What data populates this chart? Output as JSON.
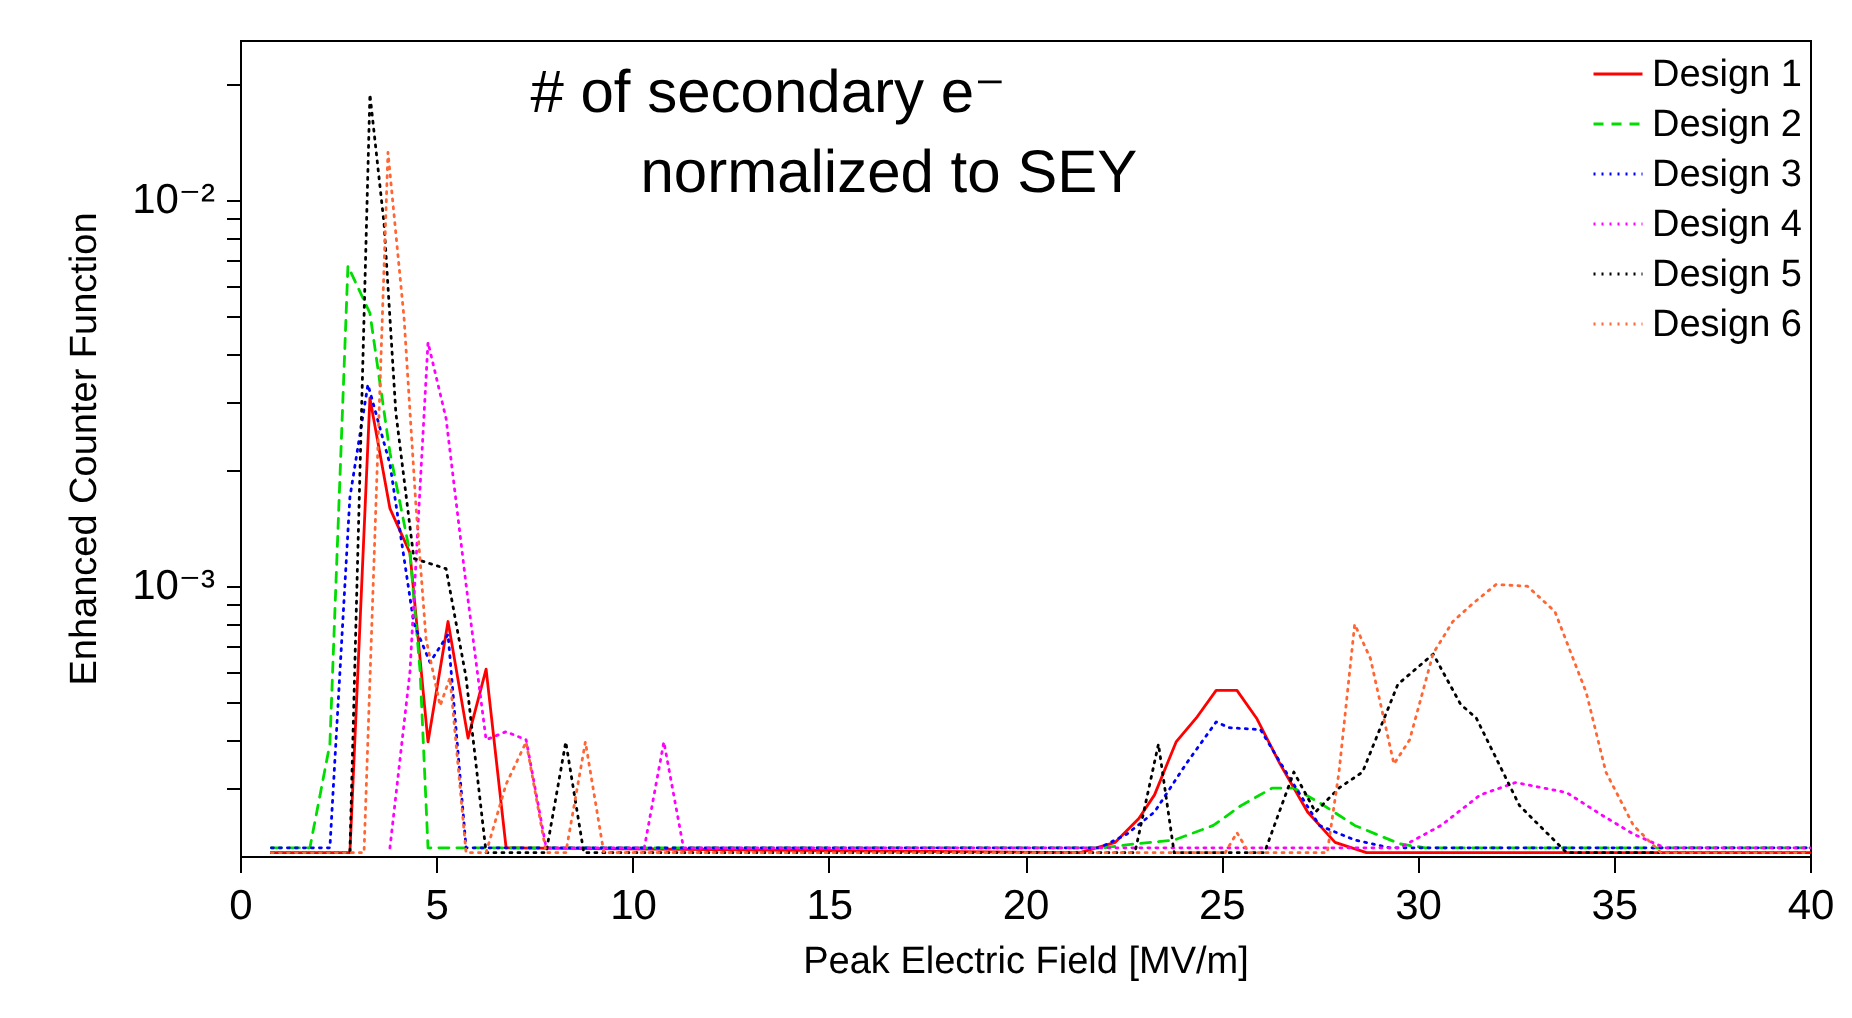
{
  "chart_data": {
    "type": "line",
    "xlabel": "Peak Electric Field [MV/m]",
    "ylabel": "Enhanced Counter Function",
    "log": "y",
    "xlim": [
      0,
      40
    ],
    "xticks": [
      0,
      5,
      10,
      15,
      20,
      25,
      30,
      35,
      40
    ],
    "ylim": [
      0.0002,
      0.026
    ],
    "yticks": [
      {
        "value": 0.0003,
        "label": null
      },
      {
        "value": 0.0004,
        "label": null
      },
      {
        "value": 0.0005,
        "label": null
      },
      {
        "value": 0.0006,
        "label": null
      },
      {
        "value": 0.0007,
        "label": null
      },
      {
        "value": 0.0008,
        "label": null
      },
      {
        "value": 0.0009,
        "label": null
      },
      {
        "value": 0.001,
        "label": "10⁻³"
      },
      {
        "value": 0.002,
        "label": null
      },
      {
        "value": 0.003,
        "label": null
      },
      {
        "value": 0.004,
        "label": null
      },
      {
        "value": 0.005,
        "label": null
      },
      {
        "value": 0.006,
        "label": null
      },
      {
        "value": 0.007,
        "label": null
      },
      {
        "value": 0.008,
        "label": null
      },
      {
        "value": 0.009,
        "label": null
      },
      {
        "value": 0.01,
        "label": "10⁻²"
      },
      {
        "value": 0.02,
        "label": null
      }
    ],
    "grid": false,
    "legend": "top right",
    "marker": "none",
    "annotations": [
      "# of secondary e⁻",
      "normalized to SEY"
    ],
    "series": [
      {
        "name": "Design 1",
        "color": "#ff0000",
        "line_style": "solid",
        "x": [
          0.8,
          2.8,
          3.31,
          3.82,
          4.33,
          4.79,
          5.3,
          5.81,
          6.27,
          6.78,
          21.4,
          22.3,
          22.9,
          23.3,
          23.85,
          24.36,
          24.87,
          25.4,
          25.9,
          26.5,
          27.2,
          27.9,
          28.7,
          40
        ],
        "values": [
          0.000204,
          0.000204,
          0.00307,
          0.00159,
          0.00122,
          0.000395,
          0.00081,
          0.000404,
          0.00061,
          0.00021,
          0.000204,
          0.000217,
          0.00025,
          0.000288,
          0.000395,
          0.000455,
          0.000537,
          0.000537,
          0.000455,
          0.000346,
          0.00026,
          0.000217,
          0.000204,
          0.000204
        ]
      },
      {
        "name": "Design 2",
        "color": "#00dd00",
        "line_style": "dashed",
        "x": [
          0.8,
          1.78,
          2.29,
          2.75,
          3.31,
          3.82,
          4.33,
          4.59,
          4.79,
          22.0,
          22.8,
          23.8,
          24.8,
          25.5,
          26.3,
          26.85,
          27.5,
          28.4,
          29.55,
          30.2,
          40
        ],
        "values": [
          0.00021,
          0.00021,
          0.00039,
          0.00675,
          0.0051,
          0.00222,
          0.00122,
          0.0006,
          0.00021,
          0.00021,
          0.000215,
          0.00022,
          0.00024,
          0.00027,
          0.0003,
          0.0003,
          0.000275,
          0.00024,
          0.000215,
          0.00021,
          0.00021
        ]
      },
      {
        "name": "Design 3",
        "color": "#0000ff",
        "line_style": "dotted",
        "x": [
          0.8,
          2.29,
          2.8,
          3.26,
          3.82,
          4.43,
          4.84,
          5.3,
          5.76,
          21.9,
          22.6,
          23.3,
          24.1,
          24.87,
          25.2,
          26.0,
          26.65,
          27.5,
          28.4,
          29.3,
          40
        ],
        "values": [
          0.00021,
          0.00021,
          0.0017,
          0.00333,
          0.00207,
          0.0008,
          0.000635,
          0.00075,
          0.00021,
          0.00021,
          0.000228,
          0.00026,
          0.000346,
          0.000445,
          0.00043,
          0.000425,
          0.00033,
          0.00024,
          0.00022,
          0.00021,
          0.00021
        ]
      },
      {
        "name": "Design 4",
        "color": "#ff00ff",
        "line_style": "dotted",
        "x": [
          3.82,
          4.33,
          4.79,
          5.25,
          5.76,
          6.27,
          6.78,
          7.29,
          7.8,
          10.3,
          10.8,
          11.3,
          29.55,
          30.6,
          31.6,
          32.5,
          33.8,
          34.65,
          35.5,
          36.3,
          40
        ],
        "values": [
          0.00021,
          0.0006,
          0.00428,
          0.00272,
          0.00101,
          0.0004,
          0.00042,
          0.0004,
          0.00021,
          0.00021,
          0.000395,
          0.00021,
          0.00021,
          0.00024,
          0.000288,
          0.00031,
          0.000292,
          0.000257,
          0.000228,
          0.00021,
          0.00021
        ]
      },
      {
        "name": "Design 5",
        "color": "#000000",
        "line_style": "dotted",
        "x": [
          0.8,
          2.8,
          3.31,
          3.67,
          3.97,
          4.43,
          5.25,
          5.76,
          6.27,
          7.8,
          8.3,
          8.76,
          22.8,
          23.4,
          23.8,
          26.1,
          26.85,
          27.4,
          28.0,
          28.6,
          29.5,
          30.4,
          31.1,
          31.5,
          32.6,
          33.8,
          40
        ],
        "values": [
          0.000204,
          0.000204,
          0.0188,
          0.0087,
          0.00282,
          0.00118,
          0.00111,
          0.00058,
          0.000204,
          0.000204,
          0.000395,
          0.000204,
          0.000204,
          0.00039,
          0.000204,
          0.000204,
          0.00033,
          0.00026,
          0.0003,
          0.00033,
          0.000557,
          0.000667,
          0.000494,
          0.000455,
          0.00027,
          0.000204,
          0.000204
        ]
      },
      {
        "name": "Design 6",
        "color": "#ff6633",
        "line_style": "dotted",
        "x": [
          0.8,
          3.16,
          3.77,
          4.18,
          4.48,
          4.74,
          5.1,
          5.35,
          5.76,
          6.27,
          6.78,
          7.29,
          7.8,
          8.3,
          8.8,
          9.27,
          25.1,
          25.4,
          25.7,
          27.7,
          28.0,
          28.4,
          28.8,
          29.4,
          29.8,
          30.4,
          30.9,
          31.4,
          32.0,
          32.8,
          33.5,
          34.3,
          34.8,
          35.5,
          36.2,
          40
        ],
        "values": [
          0.000204,
          0.000204,
          0.0133,
          0.00495,
          0.00163,
          0.00073,
          0.00049,
          0.00058,
          0.000204,
          0.000204,
          0.000307,
          0.000395,
          0.000204,
          0.000204,
          0.000395,
          0.000204,
          0.000204,
          0.00023,
          0.000204,
          0.000204,
          0.00033,
          0.000797,
          0.00065,
          0.000346,
          0.0004,
          0.00067,
          0.00081,
          0.0009,
          0.00101,
          0.001,
          0.00086,
          0.00053,
          0.00033,
          0.00024,
          0.000204,
          0.000204
        ]
      }
    ]
  }
}
